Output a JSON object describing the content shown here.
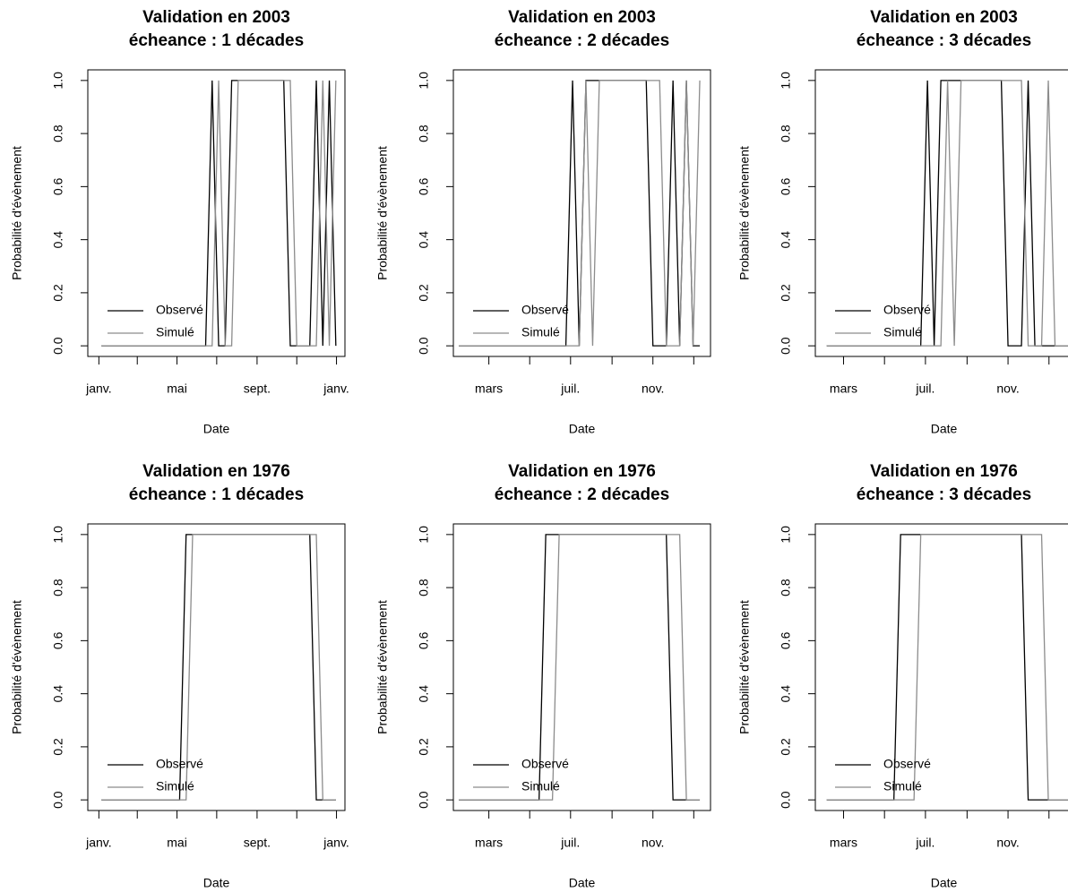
{
  "chart_data": [
    {
      "type": "line",
      "title": "Validation en 2003",
      "subtitle": "écheance : 1 décades",
      "x_label": "Date",
      "y_label": "Probabilité d'évènement",
      "x": [
        5,
        15,
        25,
        35,
        45,
        55,
        65,
        75,
        85,
        95,
        105,
        115,
        125,
        135,
        145,
        155,
        165,
        175,
        185,
        195,
        205,
        215,
        225,
        235,
        245,
        255,
        265,
        275,
        285,
        295,
        305,
        315,
        325,
        335,
        345,
        355,
        365
      ],
      "series": [
        {
          "name": "Observé",
          "color": "#000000",
          "values": [
            0,
            0,
            0,
            0,
            0,
            0,
            0,
            0,
            0,
            0,
            0,
            0,
            0,
            0,
            0,
            0,
            0,
            1,
            0,
            0,
            1,
            1,
            1,
            1,
            1,
            1,
            1,
            1,
            1,
            0,
            0,
            0,
            0,
            1,
            0,
            1,
            0
          ]
        },
        {
          "name": "Simulé",
          "color": "#8c8c8c",
          "values": [
            0,
            0,
            0,
            0,
            0,
            0,
            0,
            0,
            0,
            0,
            0,
            0,
            0,
            0,
            0,
            0,
            0,
            0,
            1,
            0,
            0,
            1,
            1,
            1,
            1,
            1,
            1,
            1,
            1,
            1,
            0,
            0,
            0,
            0,
            1,
            0,
            1
          ]
        }
      ],
      "xlim": [
        -16,
        379
      ],
      "xticks": [
        {
          "value": 1,
          "label": "janv."
        },
        {
          "value": 60,
          "label": null
        },
        {
          "value": 121,
          "label": "mai"
        },
        {
          "value": 182,
          "label": null
        },
        {
          "value": 244,
          "label": "sept."
        },
        {
          "value": 305,
          "label": null
        },
        {
          "value": 366,
          "label": "janv."
        }
      ],
      "ylim": [
        -0.04,
        1.04
      ],
      "yticks": [
        {
          "value": 0,
          "label": "0.0"
        },
        0.2,
        0.4,
        0.6,
        0.8,
        {
          "value": 1,
          "label": "1.0"
        }
      ],
      "legend": "bottomleft"
    },
    {
      "type": "line",
      "title": "Validation en 2003",
      "subtitle": "écheance : 2 décades",
      "x_label": "Date",
      "y_label": "Probabilité d'évènement",
      "x": [
        15,
        25,
        35,
        45,
        55,
        65,
        75,
        85,
        95,
        105,
        115,
        125,
        135,
        145,
        155,
        165,
        175,
        185,
        195,
        205,
        215,
        225,
        235,
        245,
        255,
        265,
        275,
        285,
        295,
        305,
        315,
        325,
        335,
        345,
        355,
        365,
        375
      ],
      "series": [
        {
          "name": "Observé",
          "color": "#000000",
          "values": [
            0,
            0,
            0,
            0,
            0,
            0,
            0,
            0,
            0,
            0,
            0,
            0,
            0,
            0,
            0,
            0,
            0,
            1,
            0,
            1,
            1,
            1,
            1,
            1,
            1,
            1,
            1,
            1,
            1,
            0,
            0,
            0,
            1,
            0,
            1,
            0,
            0
          ]
        },
        {
          "name": "Simulé",
          "color": "#8c8c8c",
          "values": [
            0,
            0,
            0,
            0,
            0,
            0,
            0,
            0,
            0,
            0,
            0,
            0,
            0,
            0,
            0,
            0,
            0,
            0,
            0,
            1,
            0,
            1,
            1,
            1,
            1,
            1,
            1,
            1,
            1,
            1,
            1,
            0,
            0,
            0,
            1,
            0,
            1
          ]
        }
      ],
      "xlim": [
        7,
        391
      ],
      "xticks": [
        {
          "value": 60,
          "label": "mars"
        },
        {
          "value": 121,
          "label": null
        },
        {
          "value": 182,
          "label": "juil."
        },
        {
          "value": 244,
          "label": null
        },
        {
          "value": 305,
          "label": "nov."
        },
        {
          "value": 366,
          "label": null
        }
      ],
      "ylim": [
        -0.04,
        1.04
      ],
      "yticks": [
        {
          "value": 0,
          "label": "0.0"
        },
        0.2,
        0.4,
        0.6,
        0.8,
        {
          "value": 1,
          "label": "1.0"
        }
      ],
      "legend": "bottomleft"
    },
    {
      "type": "line",
      "title": "Validation en 2003",
      "subtitle": "écheance : 3 décades",
      "x_label": "Date",
      "y_label": "Probabilité d'évènement",
      "x": [
        35,
        45,
        55,
        65,
        75,
        85,
        95,
        105,
        115,
        125,
        135,
        145,
        155,
        165,
        175,
        185,
        195,
        205,
        215,
        225,
        235,
        245,
        255,
        265,
        275,
        285,
        295,
        305,
        315,
        325,
        335,
        345,
        355,
        365,
        375,
        385,
        395
      ],
      "series": [
        {
          "name": "Observé",
          "color": "#000000",
          "values": [
            0,
            0,
            0,
            0,
            0,
            0,
            0,
            0,
            0,
            0,
            0,
            0,
            0,
            0,
            0,
            1,
            0,
            1,
            1,
            1,
            1,
            1,
            1,
            1,
            1,
            1,
            1,
            0,
            0,
            0,
            1,
            0,
            0,
            0,
            0,
            0,
            0
          ]
        },
        {
          "name": "Simulé",
          "color": "#8c8c8c",
          "values": [
            0,
            0,
            0,
            0,
            0,
            0,
            0,
            0,
            0,
            0,
            0,
            0,
            0,
            0,
            0,
            0,
            0,
            0,
            1,
            0,
            1,
            1,
            1,
            1,
            1,
            1,
            1,
            1,
            1,
            1,
            0,
            0,
            0,
            1,
            0,
            0,
            0
          ]
        }
      ],
      "xlim": [
        18,
        401
      ],
      "xticks": [
        {
          "value": 60,
          "label": "mars"
        },
        {
          "value": 121,
          "label": null
        },
        {
          "value": 182,
          "label": "juil."
        },
        {
          "value": 244,
          "label": null
        },
        {
          "value": 305,
          "label": "nov."
        },
        {
          "value": 366,
          "label": null
        }
      ],
      "ylim": [
        -0.04,
        1.04
      ],
      "yticks": [
        {
          "value": 0,
          "label": "0.0"
        },
        0.2,
        0.4,
        0.6,
        0.8,
        {
          "value": 1,
          "label": "1.0"
        }
      ],
      "legend": "bottomleft"
    },
    {
      "type": "line",
      "title": "Validation en 1976",
      "subtitle": "écheance : 1 décades",
      "x_label": "Date",
      "y_label": "Probabilité d'évènement",
      "x": [
        5,
        15,
        25,
        35,
        45,
        55,
        65,
        75,
        85,
        95,
        105,
        115,
        125,
        135,
        145,
        155,
        165,
        175,
        185,
        195,
        205,
        215,
        225,
        235,
        245,
        255,
        265,
        275,
        285,
        295,
        305,
        315,
        325,
        335,
        345,
        355,
        365
      ],
      "series": [
        {
          "name": "Observé",
          "color": "#000000",
          "values": [
            0,
            0,
            0,
            0,
            0,
            0,
            0,
            0,
            0,
            0,
            0,
            0,
            0,
            1,
            1,
            1,
            1,
            1,
            1,
            1,
            1,
            1,
            1,
            1,
            1,
            1,
            1,
            1,
            1,
            1,
            1,
            1,
            1,
            0,
            0,
            0,
            0
          ]
        },
        {
          "name": "Simulé",
          "color": "#8c8c8c",
          "values": [
            0,
            0,
            0,
            0,
            0,
            0,
            0,
            0,
            0,
            0,
            0,
            0,
            0,
            0,
            1,
            1,
            1,
            1,
            1,
            1,
            1,
            1,
            1,
            1,
            1,
            1,
            1,
            1,
            1,
            1,
            1,
            1,
            1,
            1,
            0,
            0,
            0
          ]
        }
      ],
      "xlim": [
        -16,
        379
      ],
      "xticks": [
        {
          "value": 1,
          "label": "janv."
        },
        {
          "value": 60,
          "label": null
        },
        {
          "value": 121,
          "label": "mai"
        },
        {
          "value": 182,
          "label": null
        },
        {
          "value": 244,
          "label": "sept."
        },
        {
          "value": 305,
          "label": null
        },
        {
          "value": 366,
          "label": "janv."
        }
      ],
      "ylim": [
        -0.04,
        1.04
      ],
      "yticks": [
        {
          "value": 0,
          "label": "0.0"
        },
        0.2,
        0.4,
        0.6,
        0.8,
        {
          "value": 1,
          "label": "1.0"
        }
      ],
      "legend": "bottomleft"
    },
    {
      "type": "line",
      "title": "Validation en 1976",
      "subtitle": "écheance : 2 décades",
      "x_label": "Date",
      "y_label": "Probabilité d'évènement",
      "x": [
        15,
        25,
        35,
        45,
        55,
        65,
        75,
        85,
        95,
        105,
        115,
        125,
        135,
        145,
        155,
        165,
        175,
        185,
        195,
        205,
        215,
        225,
        235,
        245,
        255,
        265,
        275,
        285,
        295,
        305,
        315,
        325,
        335,
        345,
        355,
        365,
        375
      ],
      "series": [
        {
          "name": "Observé",
          "color": "#000000",
          "values": [
            0,
            0,
            0,
            0,
            0,
            0,
            0,
            0,
            0,
            0,
            0,
            0,
            0,
            1,
            1,
            1,
            1,
            1,
            1,
            1,
            1,
            1,
            1,
            1,
            1,
            1,
            1,
            1,
            1,
            1,
            1,
            1,
            0,
            0,
            0,
            0,
            0
          ]
        },
        {
          "name": "Simulé",
          "color": "#8c8c8c",
          "values": [
            0,
            0,
            0,
            0,
            0,
            0,
            0,
            0,
            0,
            0,
            0,
            0,
            0,
            0,
            0,
            1,
            1,
            1,
            1,
            1,
            1,
            1,
            1,
            1,
            1,
            1,
            1,
            1,
            1,
            1,
            1,
            1,
            1,
            1,
            0,
            0,
            0
          ]
        }
      ],
      "xlim": [
        7,
        391
      ],
      "xticks": [
        {
          "value": 60,
          "label": "mars"
        },
        {
          "value": 121,
          "label": null
        },
        {
          "value": 182,
          "label": "juil."
        },
        {
          "value": 244,
          "label": null
        },
        {
          "value": 305,
          "label": "nov."
        },
        {
          "value": 366,
          "label": null
        }
      ],
      "ylim": [
        -0.04,
        1.04
      ],
      "yticks": [
        {
          "value": 0,
          "label": "0.0"
        },
        0.2,
        0.4,
        0.6,
        0.8,
        {
          "value": 1,
          "label": "1.0"
        }
      ],
      "legend": "bottomleft"
    },
    {
      "type": "line",
      "title": "Validation en 1976",
      "subtitle": "écheance : 3 décades",
      "x_label": "Date",
      "y_label": "Probabilité d'évènement",
      "x": [
        35,
        45,
        55,
        65,
        75,
        85,
        95,
        105,
        115,
        125,
        135,
        145,
        155,
        165,
        175,
        185,
        195,
        205,
        215,
        225,
        235,
        245,
        255,
        265,
        275,
        285,
        295,
        305,
        315,
        325,
        335,
        345,
        355,
        365,
        375,
        385,
        395
      ],
      "series": [
        {
          "name": "Observé",
          "color": "#000000",
          "values": [
            0,
            0,
            0,
            0,
            0,
            0,
            0,
            0,
            0,
            0,
            0,
            1,
            1,
            1,
            1,
            1,
            1,
            1,
            1,
            1,
            1,
            1,
            1,
            1,
            1,
            1,
            1,
            1,
            1,
            1,
            0,
            0,
            0,
            0,
            0,
            0,
            0
          ]
        },
        {
          "name": "Simulé",
          "color": "#8c8c8c",
          "values": [
            0,
            0,
            0,
            0,
            0,
            0,
            0,
            0,
            0,
            0,
            0,
            0,
            0,
            0,
            1,
            1,
            1,
            1,
            1,
            1,
            1,
            1,
            1,
            1,
            1,
            1,
            1,
            1,
            1,
            1,
            1,
            1,
            1,
            0,
            0,
            0,
            0
          ]
        }
      ],
      "xlim": [
        18,
        401
      ],
      "xticks": [
        {
          "value": 60,
          "label": "mars"
        },
        {
          "value": 121,
          "label": null
        },
        {
          "value": 182,
          "label": "juil."
        },
        {
          "value": 244,
          "label": null
        },
        {
          "value": 305,
          "label": "nov."
        },
        {
          "value": 366,
          "label": null
        }
      ],
      "ylim": [
        -0.04,
        1.04
      ],
      "yticks": [
        {
          "value": 0,
          "label": "0.0"
        },
        0.2,
        0.4,
        0.6,
        0.8,
        {
          "value": 1,
          "label": "1.0"
        }
      ],
      "legend": "bottomleft"
    }
  ]
}
